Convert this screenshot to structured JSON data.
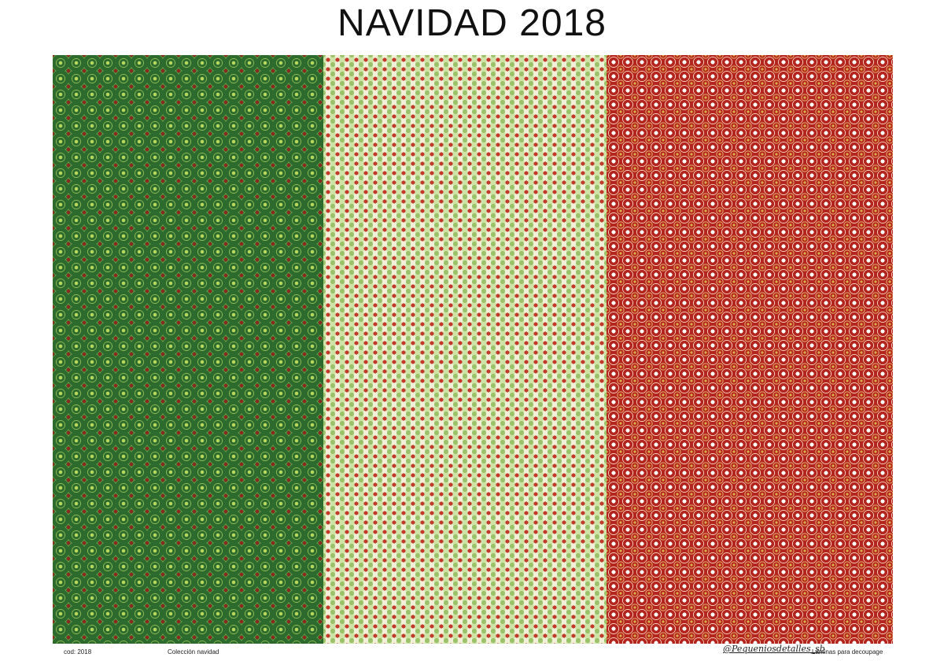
{
  "title": "NAVIDAD 2018",
  "panels": [
    {
      "name": "green-circles-pattern",
      "base_color": "#2c6a2e",
      "accent_colors": [
        "#b7d65a",
        "#8a2a1f"
      ]
    },
    {
      "name": "cream-dots-pattern",
      "base_color": "#f2f0d8",
      "accent_colors": [
        "#c23a2c",
        "#9cc36a",
        "#1f5e33"
      ]
    },
    {
      "name": "red-circles-pattern",
      "base_color": "#b3261f",
      "accent_colors": [
        "#ffffff",
        "#d9b04a"
      ]
    }
  ],
  "footer": {
    "code": "cod: 2018",
    "collection": "Colección navidad",
    "brand": "@Pequeniosdetalles_sb",
    "tagline": "Láminas para decoupage"
  }
}
